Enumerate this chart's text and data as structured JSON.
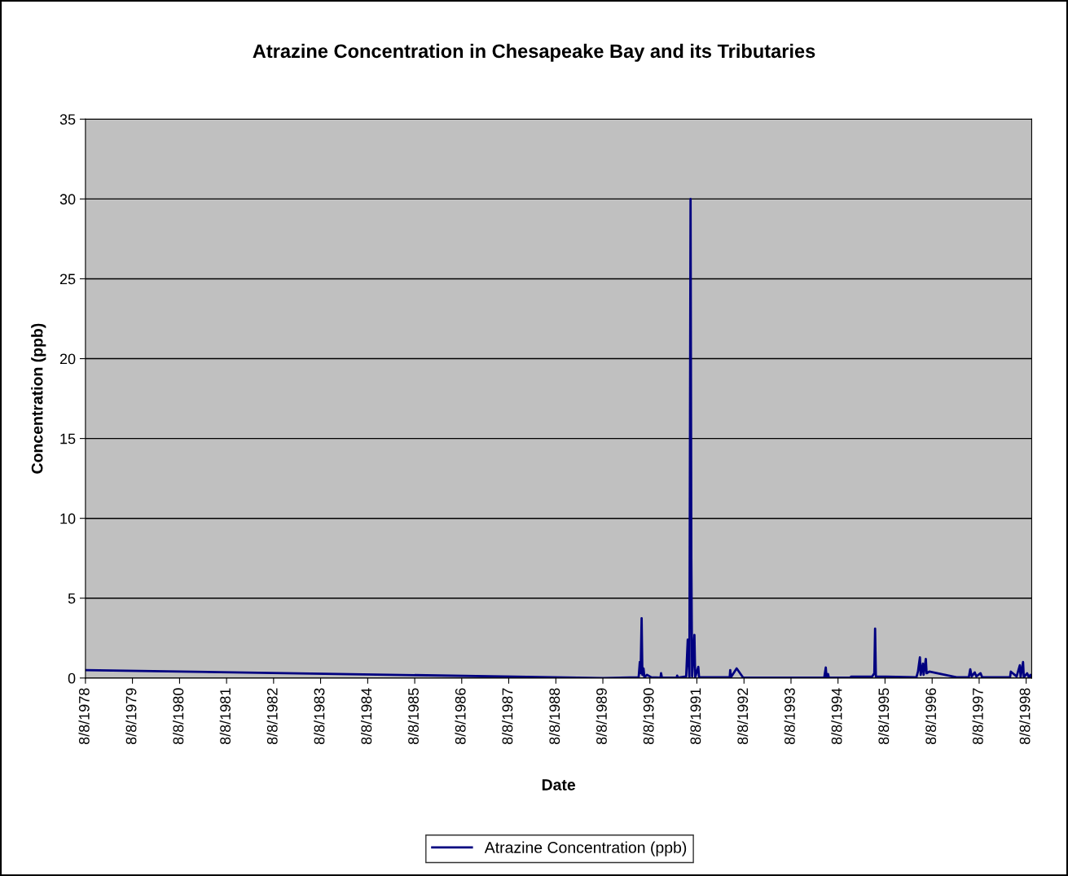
{
  "chart_data": {
    "type": "line",
    "title": "Atrazine Concentration in Chesapeake Bay and its Tributaries",
    "xlabel": "Date",
    "ylabel": "Concentration (ppb)",
    "x": [
      "1978-08-08",
      "1989-08-08",
      "1990-05-13",
      "1990-05-22",
      "1990-05-28",
      "1990-06-05",
      "1990-06-11",
      "1990-06-20",
      "1990-06-26",
      "1990-07-17",
      "1990-08-19",
      "1990-10-30",
      "1990-11-03",
      "1990-11-10",
      "1991-03-04",
      "1991-03-08",
      "1991-03-14",
      "1991-05-17",
      "1991-05-29",
      "1991-06-11",
      "1991-06-20",
      "1991-06-26",
      "1991-07-02",
      "1991-07-20",
      "1991-07-26",
      "1991-08-19",
      "1991-08-25",
      "1992-04-19",
      "1992-04-23",
      "1992-04-29",
      "1992-06-12",
      "1992-08-02",
      "1994-04-23",
      "1994-05-05",
      "1994-05-11",
      "1994-05-23",
      "1994-05-29",
      "1994-11-11",
      "1994-11-17",
      "1995-04-29",
      "1995-05-17",
      "1995-05-23",
      "1995-05-29",
      "1996-04-08",
      "1996-04-20",
      "1996-05-05",
      "1996-05-11",
      "1996-05-28",
      "1996-06-03",
      "1996-06-20",
      "1996-06-26",
      "1996-07-17",
      "1997-02-13",
      "1997-05-20",
      "1997-05-31",
      "1997-06-11",
      "1997-07-05",
      "1997-07-17",
      "1997-08-19",
      "1997-08-31",
      "1998-04-05",
      "1998-04-11",
      "1998-05-26",
      "1998-06-20",
      "1998-06-26",
      "1998-07-15",
      "1998-07-21",
      "1998-08-16",
      "1998-08-29",
      "1998-09-10",
      "1998-09-17"
    ],
    "series": [
      {
        "name": "Atrazine Concentration (ppb)",
        "color": "#000080",
        "values": [
          0.5,
          0.0,
          0.05,
          1.0,
          0.3,
          3.75,
          0.2,
          0.6,
          0.05,
          0.2,
          0.05,
          0.02,
          0.3,
          0.02,
          0.02,
          0.15,
          0.02,
          0.1,
          2.4,
          0.0,
          30.0,
          7.5,
          0.1,
          2.7,
          0.05,
          0.7,
          0.05,
          0.05,
          0.5,
          0.05,
          0.6,
          0.02,
          0.02,
          0.66,
          0.02,
          0.25,
          0.02,
          0.03,
          0.08,
          0.08,
          0.3,
          3.1,
          0.1,
          0.05,
          0.4,
          1.3,
          0.2,
          0.9,
          0.2,
          1.2,
          0.3,
          0.4,
          0.05,
          0.05,
          0.55,
          0.1,
          0.35,
          0.1,
          0.3,
          0.05,
          0.05,
          0.4,
          0.1,
          0.8,
          0.05,
          1.0,
          0.05,
          0.3,
          0.05,
          0.2,
          0.05
        ]
      }
    ],
    "xlim": [
      "1978-08-08",
      "1998-09-20"
    ],
    "xticks": [
      {
        "value": "1978-08-08",
        "label": "8/8/1978"
      },
      {
        "value": "1979-08-08",
        "label": "8/8/1979"
      },
      {
        "value": "1980-08-08",
        "label": "8/8/1980"
      },
      {
        "value": "1981-08-08",
        "label": "8/8/1981"
      },
      {
        "value": "1982-08-08",
        "label": "8/8/1982"
      },
      {
        "value": "1983-08-08",
        "label": "8/8/1983"
      },
      {
        "value": "1984-08-08",
        "label": "8/8/1984"
      },
      {
        "value": "1985-08-08",
        "label": "8/8/1985"
      },
      {
        "value": "1986-08-08",
        "label": "8/8/1986"
      },
      {
        "value": "1987-08-08",
        "label": "8/8/1987"
      },
      {
        "value": "1988-08-08",
        "label": "8/8/1988"
      },
      {
        "value": "1989-08-08",
        "label": "8/8/1989"
      },
      {
        "value": "1990-08-08",
        "label": "8/8/1990"
      },
      {
        "value": "1991-08-08",
        "label": "8/8/1991"
      },
      {
        "value": "1992-08-08",
        "label": "8/8/1992"
      },
      {
        "value": "1993-08-08",
        "label": "8/8/1993"
      },
      {
        "value": "1994-08-08",
        "label": "8/8/1994"
      },
      {
        "value": "1995-08-08",
        "label": "8/8/1995"
      },
      {
        "value": "1996-08-08",
        "label": "8/8/1996"
      },
      {
        "value": "1997-08-08",
        "label": "8/8/1997"
      },
      {
        "value": "1998-08-08",
        "label": "8/8/1998"
      }
    ],
    "ylim": [
      0,
      35
    ],
    "yticks": [
      0,
      5,
      10,
      15,
      20,
      25,
      30,
      35
    ],
    "grid": "y",
    "legend": "bottom",
    "marker": "none",
    "line_style": "solid"
  }
}
